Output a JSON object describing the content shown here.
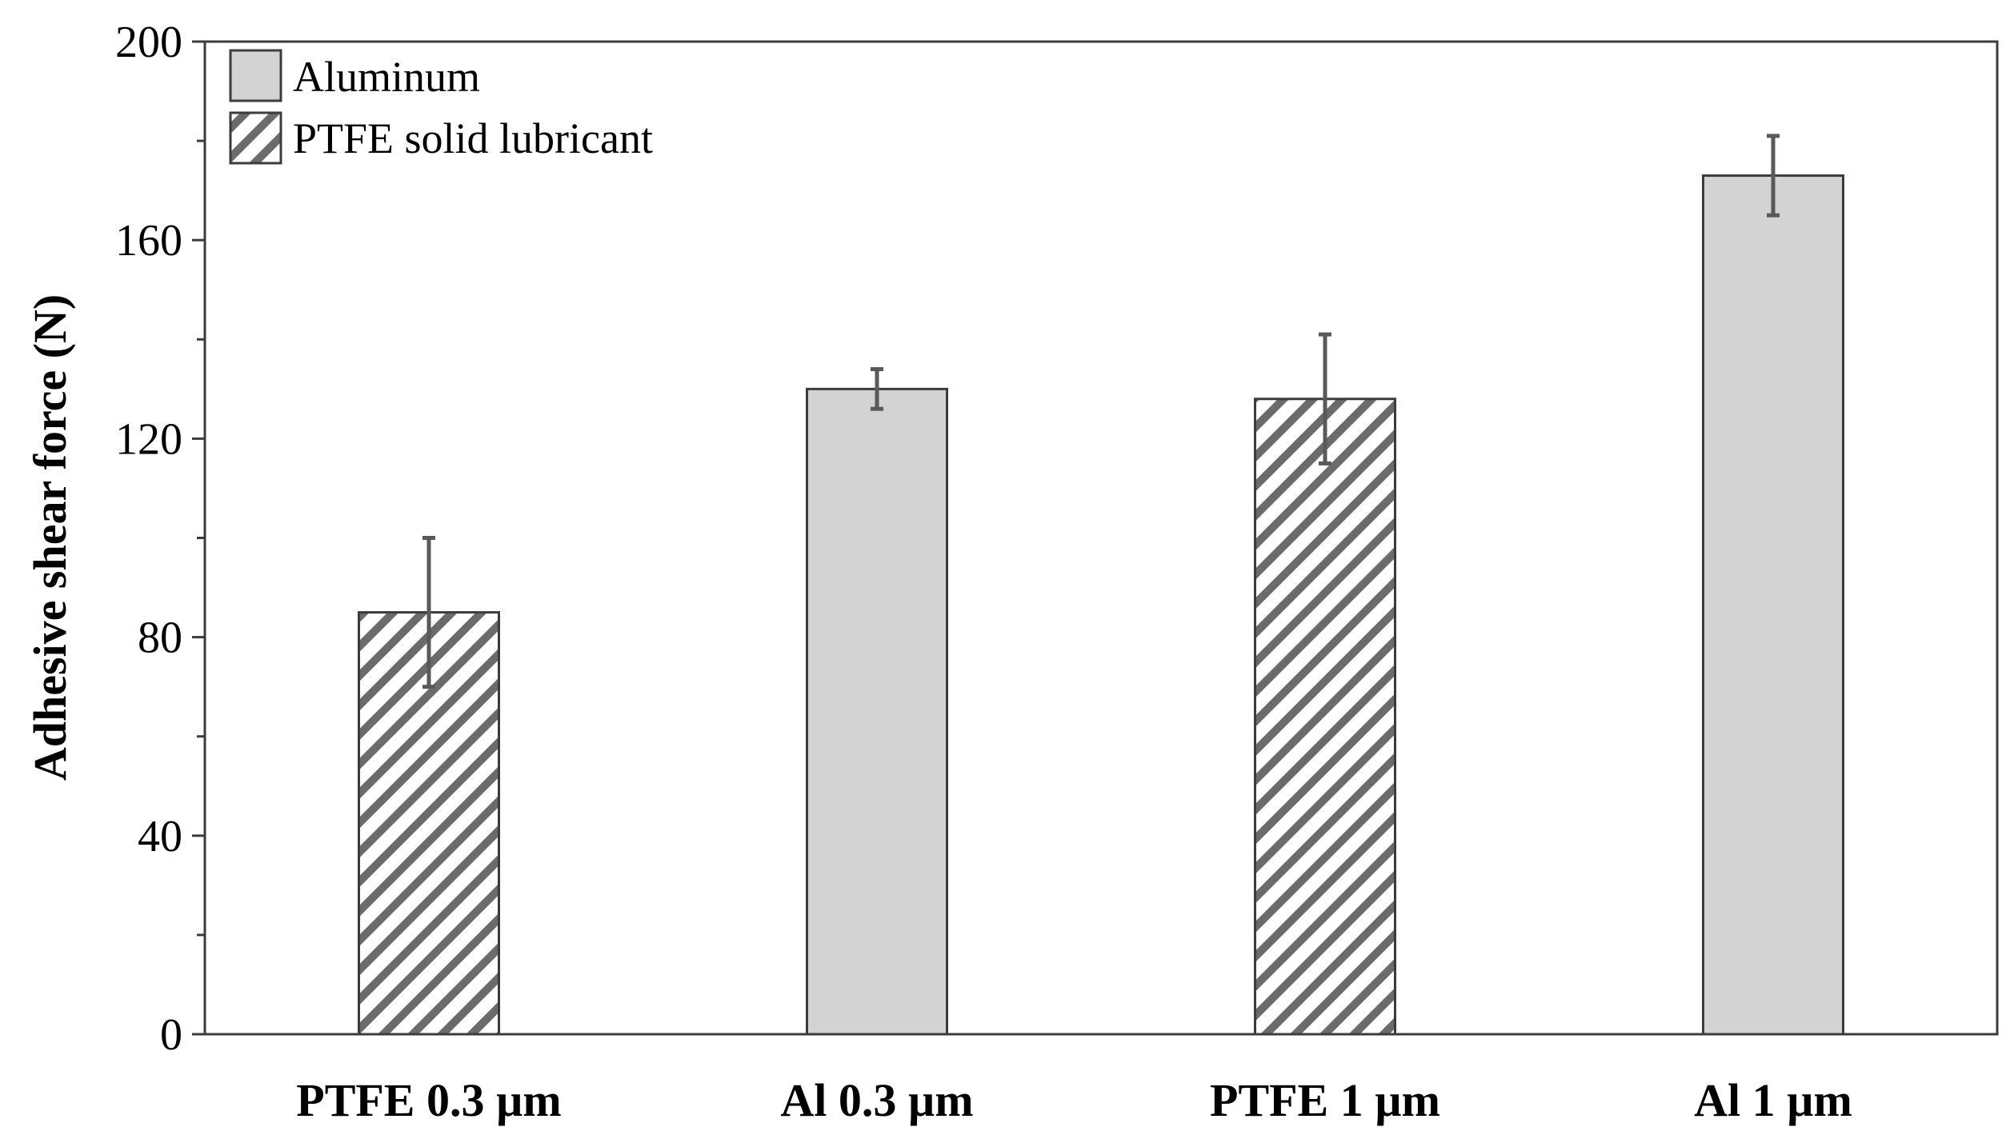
{
  "chart_data": {
    "type": "bar",
    "title": "",
    "xlabel": "",
    "ylabel": "Adhesive shear force (N)",
    "ylim": [
      0,
      200
    ],
    "yticks": [
      0,
      40,
      80,
      120,
      160,
      200
    ],
    "grid": false,
    "legend_position": "top-left",
    "categories": [
      "PTFE 0.3 µm",
      "Al 0.3 µm",
      "PTFE 1 µm",
      "Al 1 µm"
    ],
    "values": [
      85,
      130,
      128,
      173
    ],
    "error_low": [
      70,
      126,
      115,
      165
    ],
    "error_high": [
      100,
      134,
      141,
      181
    ],
    "bar_series": [
      "PTFE solid lubricant",
      "Aluminum",
      "PTFE solid lubricant",
      "Aluminum"
    ],
    "series": [
      {
        "name": "Aluminum",
        "fill": "solid",
        "color": "#d3d3d3"
      },
      {
        "name": "PTFE solid lubricant",
        "fill": "hatched",
        "color": "#ffffff",
        "hatch_color": "#6b6b6b"
      }
    ],
    "error_bar_color": "#595959",
    "bar_edge_color": "#3c3c3c"
  }
}
